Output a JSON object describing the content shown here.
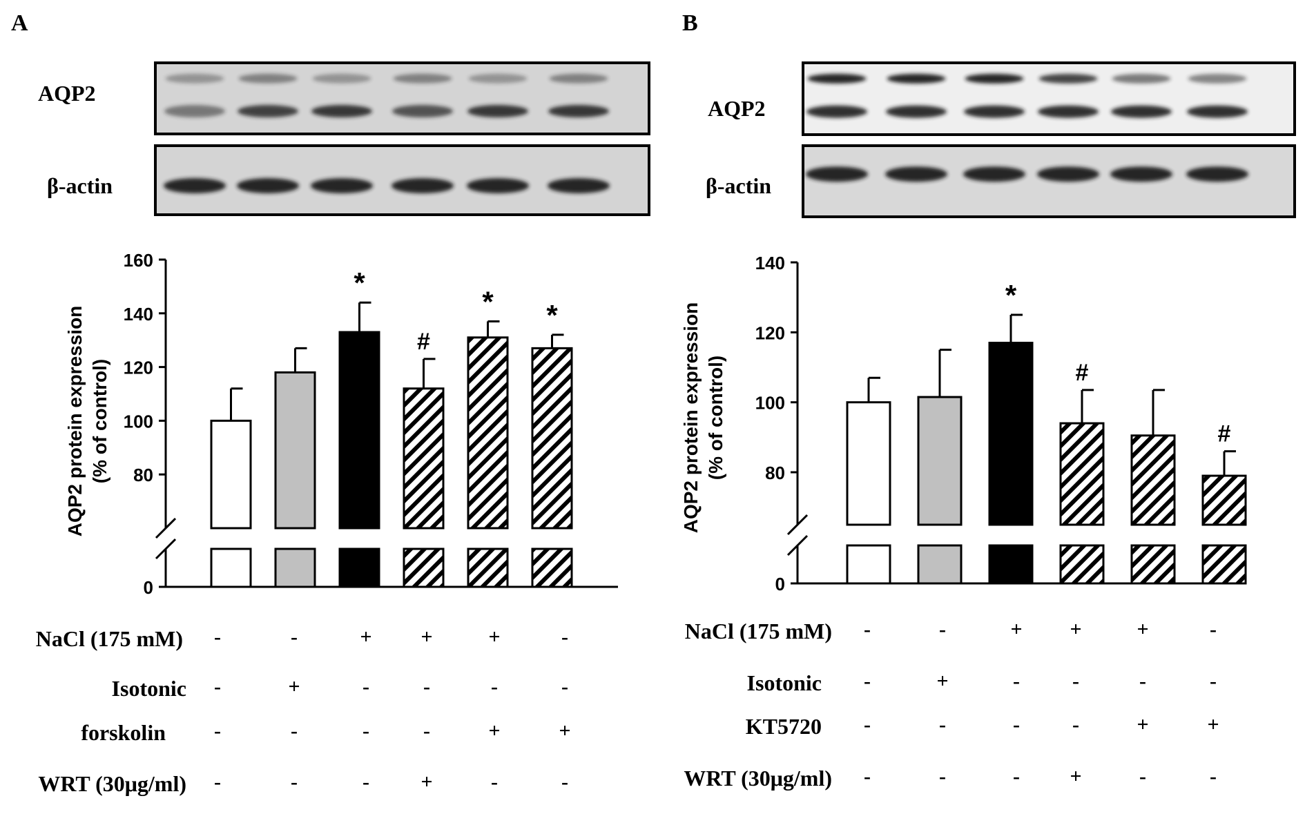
{
  "chart_data": [
    {
      "type": "bar",
      "panel_label": "A",
      "blot": {
        "rows": [
          {
            "label": "AQP2",
            "bands": "double"
          },
          {
            "label": "β-actin",
            "bands": "single"
          }
        ],
        "lane_count": 6
      },
      "ylabel_lines": [
        "AQP2 protein expression",
        "(% of control)"
      ],
      "yticks": [
        160,
        140,
        120,
        100,
        80,
        0
      ],
      "ylim_upper": [
        60,
        160
      ],
      "axis_break": true,
      "categories": [
        "1",
        "2",
        "3",
        "4",
        "5",
        "6"
      ],
      "values": [
        100,
        118,
        133,
        112,
        131,
        127
      ],
      "errors": [
        12,
        9,
        11,
        11,
        6,
        5
      ],
      "annotations": [
        "",
        "",
        "*",
        "#",
        "*",
        "*"
      ],
      "fills": [
        "white",
        "gray",
        "black",
        "hatch",
        "hatch",
        "hatch"
      ],
      "conditions": [
        {
          "label": "NaCl (175 mM)",
          "marks": [
            "-",
            "-",
            "+",
            "+",
            "+",
            "-"
          ]
        },
        {
          "label": "Isotonic",
          "marks": [
            "-",
            "+",
            "-",
            "-",
            "-",
            "-"
          ]
        },
        {
          "label": "forskolin",
          "marks": [
            "-",
            "-",
            "-",
            "-",
            "+",
            "+"
          ]
        },
        {
          "label": "WRT (30μg/ml)",
          "marks": [
            "-",
            "-",
            "-",
            "+",
            "-",
            "-"
          ]
        }
      ]
    },
    {
      "type": "bar",
      "panel_label": "B",
      "blot": {
        "rows": [
          {
            "label": "AQP2",
            "bands": "double"
          },
          {
            "label": "β-actin",
            "bands": "single"
          }
        ],
        "lane_count": 6
      },
      "ylabel_lines": [
        "AQP2 protein expression",
        "(% of control)"
      ],
      "yticks": [
        140,
        120,
        100,
        80,
        0
      ],
      "ylim_upper": [
        65,
        140
      ],
      "axis_break": true,
      "categories": [
        "1",
        "2",
        "3",
        "4",
        "5",
        "6"
      ],
      "values": [
        100,
        101.5,
        117,
        94,
        90.5,
        79
      ],
      "errors": [
        7,
        13.5,
        8,
        9.5,
        13,
        7
      ],
      "annotations": [
        "",
        "",
        "*",
        "#",
        "",
        "#"
      ],
      "fills": [
        "white",
        "gray",
        "black",
        "hatch",
        "hatch",
        "hatch"
      ],
      "conditions": [
        {
          "label": "NaCl (175 mM)",
          "marks": [
            "-",
            "-",
            "+",
            "+",
            "+",
            "-"
          ]
        },
        {
          "label": "Isotonic",
          "marks": [
            "-",
            "+",
            "-",
            "-",
            "-",
            "-"
          ]
        },
        {
          "label": "KT5720",
          "marks": [
            "-",
            "-",
            "-",
            "-",
            "+",
            "+"
          ]
        },
        {
          "label": "WRT (30μg/ml)",
          "marks": [
            "-",
            "-",
            "-",
            "+",
            "-",
            "-"
          ]
        }
      ]
    }
  ],
  "colors": {
    "ink": "#000000",
    "bar_gray": "#c0c0c0",
    "blot_bg": "#d4d4d4",
    "blot_bg_b": "#efefef",
    "band": "#1a1a1a"
  }
}
